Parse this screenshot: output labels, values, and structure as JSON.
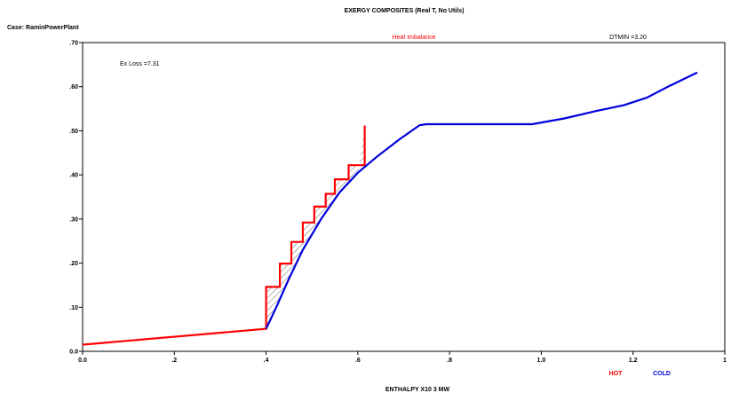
{
  "chart_data": {
    "type": "line",
    "title": "EXERGY COMPOSITES (Real T, No Utils)",
    "case_label": "Case: RaminPowerPlant",
    "header_center": "Heat Imbalance",
    "header_right": "DTMIN =3.20",
    "annotation": "Ex Loss =7.31",
    "xlabel": "ENTHALPY X10 3 MW",
    "ylabel": "",
    "xlim": [
      0,
      1.4
    ],
    "ylim": [
      0,
      0.7
    ],
    "x_ticks": [
      {
        "value": 0.0,
        "label": "0.0"
      },
      {
        "value": 0.2,
        "label": ".2"
      },
      {
        "value": 0.4,
        "label": ".4"
      },
      {
        "value": 0.6,
        "label": ".6"
      },
      {
        "value": 0.8,
        "label": ".8"
      },
      {
        "value": 1.0,
        "label": "1.0"
      },
      {
        "value": 1.2,
        "label": "1.2"
      },
      {
        "value": 1.4,
        "label": "1"
      }
    ],
    "y_ticks": [
      {
        "value": 0.0,
        "label": "0.0"
      },
      {
        "value": 0.1,
        "label": ".10"
      },
      {
        "value": 0.2,
        "label": ".20"
      },
      {
        "value": 0.3,
        "label": ".30"
      },
      {
        "value": 0.4,
        "label": ".40"
      },
      {
        "value": 0.5,
        "label": ".50"
      },
      {
        "value": 0.6,
        "label": ".60"
      },
      {
        "value": 0.7,
        "label": ".70"
      }
    ],
    "grid": false,
    "series": [
      {
        "name": "HOT",
        "color": "#ff0000",
        "points": [
          [
            0.0,
            0.015
          ],
          [
            0.4,
            0.051
          ],
          [
            0.4,
            0.146
          ],
          [
            0.43,
            0.146
          ],
          [
            0.43,
            0.199
          ],
          [
            0.455,
            0.199
          ],
          [
            0.455,
            0.248
          ],
          [
            0.48,
            0.248
          ],
          [
            0.48,
            0.292
          ],
          [
            0.505,
            0.292
          ],
          [
            0.505,
            0.328
          ],
          [
            0.53,
            0.328
          ],
          [
            0.53,
            0.357
          ],
          [
            0.55,
            0.357
          ],
          [
            0.55,
            0.39
          ],
          [
            0.58,
            0.39
          ],
          [
            0.58,
            0.422
          ],
          [
            0.615,
            0.422
          ],
          [
            0.615,
            0.512
          ]
        ]
      },
      {
        "name": "COLD",
        "color": "#0000dd",
        "points": [
          [
            0.4,
            0.051
          ],
          [
            0.42,
            0.095
          ],
          [
            0.45,
            0.165
          ],
          [
            0.48,
            0.23
          ],
          [
            0.52,
            0.3
          ],
          [
            0.56,
            0.36
          ],
          [
            0.6,
            0.405
          ],
          [
            0.64,
            0.44
          ],
          [
            0.69,
            0.48
          ],
          [
            0.735,
            0.513
          ],
          [
            0.75,
            0.515
          ],
          [
            0.98,
            0.515
          ],
          [
            1.05,
            0.528
          ],
          [
            1.12,
            0.545
          ],
          [
            1.18,
            0.558
          ],
          [
            1.23,
            0.575
          ],
          [
            1.28,
            0.602
          ],
          [
            1.34,
            0.632
          ]
        ]
      }
    ],
    "hatched_region": "between HOT and COLD, 0.40 to 0.615",
    "legend": {
      "placement": "bottom-right",
      "entries": [
        {
          "label": "HOT",
          "color": "#ff0000"
        },
        {
          "label": "COLD",
          "color": "#0000dd"
        }
      ]
    }
  }
}
